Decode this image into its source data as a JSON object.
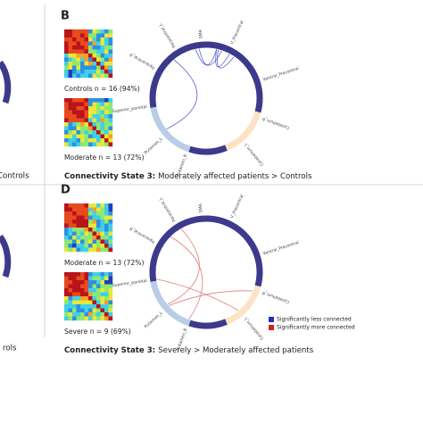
{
  "panels": [
    {
      "letter": "B",
      "matrices": [
        {
          "label": "Controls n = 16 (94%)"
        },
        {
          "label": "Moderate n = 13 (72%)"
        }
      ],
      "caption": {
        "bold": "Connectivity State 3:",
        "text": "Moderately affected patients > Controls"
      }
    },
    {
      "letter": "D",
      "matrices": [
        {
          "label": "Moderate n = 13 (72%)"
        },
        {
          "label": "Severe n = 9 (69%)"
        }
      ],
      "caption": {
        "bold": "Connectivity State 3:",
        "text": "Severely > Moderately affected patients"
      }
    }
  ],
  "left_fragments": [
    "Controls",
    "rols"
  ],
  "circle_labels": [
    "Paracentral_R",
    "Paracentral_L",
    "SMA",
    "V_Precentral",
    "Ventral_Precentral",
    "Cerebellum_R",
    "Cerebellum_L",
    "Putamen_R",
    "Putamen_L",
    "Superior_parietal"
  ],
  "legend": [
    {
      "label": "Significantly less connected",
      "color": "#1f2fbf"
    },
    {
      "label": "Significantly more connected",
      "color": "#d42020"
    }
  ]
}
